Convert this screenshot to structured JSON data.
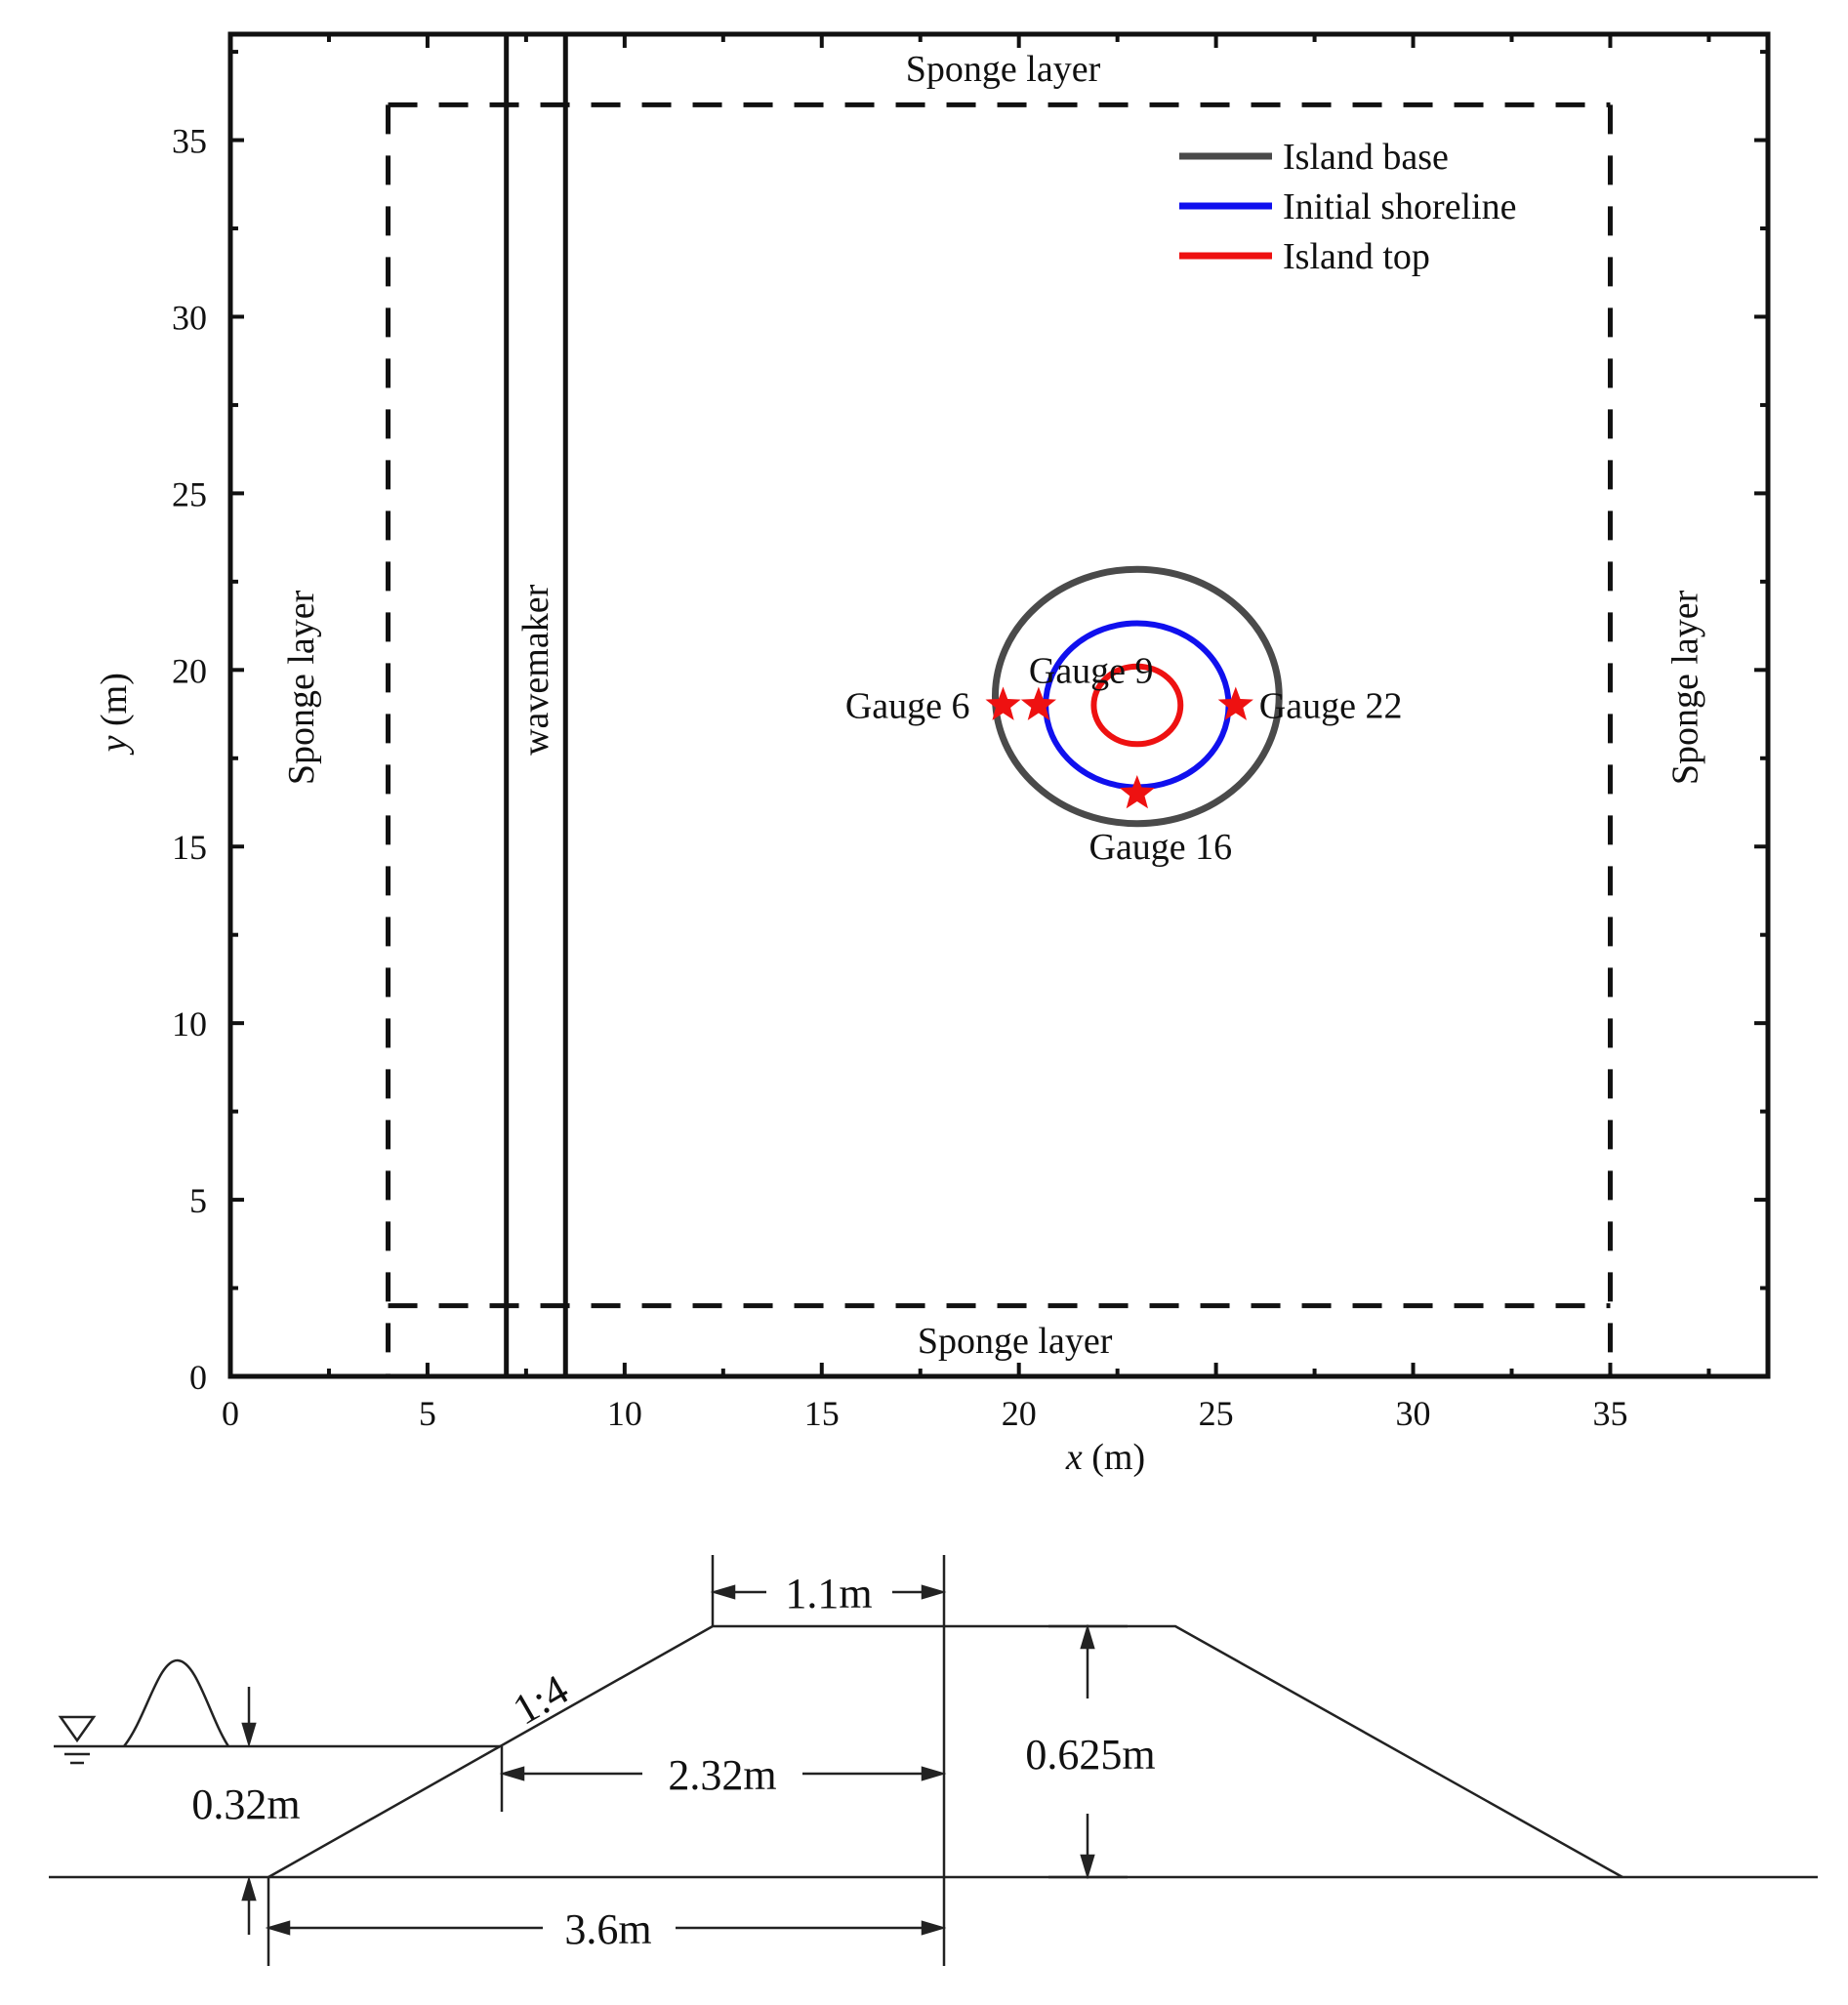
{
  "plan_view": {
    "xlabel_var": "x",
    "xlabel_unit": " (m)",
    "ylabel_var": "y",
    "ylabel_unit": " (m)",
    "xlim": [
      0,
      39
    ],
    "ylim": [
      0,
      38
    ],
    "x_ticks": [
      0,
      5,
      10,
      15,
      20,
      25,
      30,
      35
    ],
    "y_ticks": [
      0,
      5,
      10,
      15,
      20,
      25,
      30,
      35
    ],
    "sponge_labels": {
      "top": "Sponge layer",
      "bottom": "Sponge layer",
      "left": "Sponge layer",
      "right": "Sponge layer"
    },
    "sponge_boundaries": {
      "x_left": 4,
      "x_right": 35,
      "y_bottom": 2,
      "y_top": 36
    },
    "wavemaker": {
      "label": "wavemaker",
      "x_lines": [
        7,
        8.5
      ]
    },
    "island": {
      "center": [
        23,
        19
      ],
      "base_radius": 3.6,
      "shoreline_radius": 2.32,
      "top_radius": 1.1
    },
    "legend": [
      {
        "label": "Island base",
        "color": "#4a4a4a"
      },
      {
        "label": "Initial shoreline",
        "color": "#1010ee"
      },
      {
        "label": "Island top",
        "color": "#ee1111"
      }
    ],
    "gauges": [
      {
        "label": "Gauge 6",
        "x": 19.6,
        "y": 19.0
      },
      {
        "label": "Gauge 9",
        "x": 20.5,
        "y": 19.0
      },
      {
        "label": "Gauge 22",
        "x": 25.5,
        "y": 19.0
      },
      {
        "label": "Gauge 16",
        "x": 23.0,
        "y": 16.5
      }
    ],
    "gauge_color": "#ee1111"
  },
  "profile": {
    "dim_top": "1.1m",
    "dim_height": "0.625m",
    "dim_shore": "2.32m",
    "dim_base": "3.6m",
    "depth": "0.32m",
    "slope": "1:4"
  }
}
